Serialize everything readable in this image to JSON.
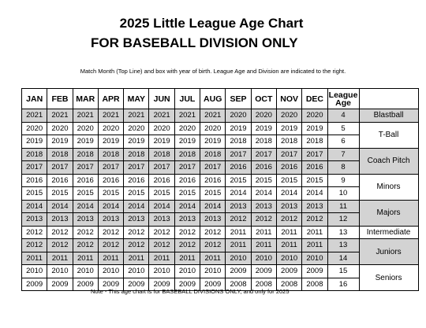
{
  "header": {
    "title": "2025 Little League Age Chart",
    "subtitle": "FOR BASEBALL DIVISION ONLY"
  },
  "instructions": "Match Month (Top Line) and box with year of birth.  League Age and Division are indicated to the right.",
  "table": {
    "columns": [
      "JAN",
      "FEB",
      "MAR",
      "APR",
      "MAY",
      "JUN",
      "JUL",
      "AUG",
      "SEP",
      "OCT",
      "NOV",
      "DEC",
      "League Age"
    ],
    "rows": [
      [
        2021,
        2021,
        2021,
        2021,
        2021,
        2021,
        2021,
        2021,
        2020,
        2020,
        2020,
        2020,
        4
      ],
      [
        2020,
        2020,
        2020,
        2020,
        2020,
        2020,
        2020,
        2020,
        2019,
        2019,
        2019,
        2019,
        5
      ],
      [
        2019,
        2019,
        2019,
        2019,
        2019,
        2019,
        2019,
        2019,
        2018,
        2018,
        2018,
        2018,
        6
      ],
      [
        2018,
        2018,
        2018,
        2018,
        2018,
        2018,
        2018,
        2018,
        2017,
        2017,
        2017,
        2017,
        7
      ],
      [
        2017,
        2017,
        2017,
        2017,
        2017,
        2017,
        2017,
        2017,
        2016,
        2016,
        2016,
        2016,
        8
      ],
      [
        2016,
        2016,
        2016,
        2016,
        2016,
        2016,
        2016,
        2016,
        2015,
        2015,
        2015,
        2015,
        9
      ],
      [
        2015,
        2015,
        2015,
        2015,
        2015,
        2015,
        2015,
        2015,
        2014,
        2014,
        2014,
        2014,
        10
      ],
      [
        2014,
        2014,
        2014,
        2014,
        2014,
        2014,
        2014,
        2014,
        2013,
        2013,
        2013,
        2013,
        11
      ],
      [
        2013,
        2013,
        2013,
        2013,
        2013,
        2013,
        2013,
        2013,
        2012,
        2012,
        2012,
        2012,
        12
      ],
      [
        2012,
        2012,
        2012,
        2012,
        2012,
        2012,
        2012,
        2012,
        2011,
        2011,
        2011,
        2011,
        13
      ],
      [
        2012,
        2012,
        2012,
        2012,
        2012,
        2012,
        2012,
        2012,
        2011,
        2011,
        2011,
        2011,
        13
      ],
      [
        2011,
        2011,
        2011,
        2011,
        2011,
        2011,
        2011,
        2011,
        2010,
        2010,
        2010,
        2010,
        14
      ],
      [
        2010,
        2010,
        2010,
        2010,
        2010,
        2010,
        2010,
        2010,
        2009,
        2009,
        2009,
        2009,
        15
      ],
      [
        2009,
        2009,
        2009,
        2009,
        2009,
        2009,
        2009,
        2009,
        2008,
        2008,
        2008,
        2008,
        16
      ]
    ],
    "divisions": [
      "Blastball",
      "T-Ball",
      "Coach Pitch",
      "Minors",
      "Majors",
      "Intermediate",
      "Juniors",
      "Seniors"
    ]
  },
  "note": "Note - This age chart is for BASEBALL DIVISIONS ONLY, and only for  2025"
}
